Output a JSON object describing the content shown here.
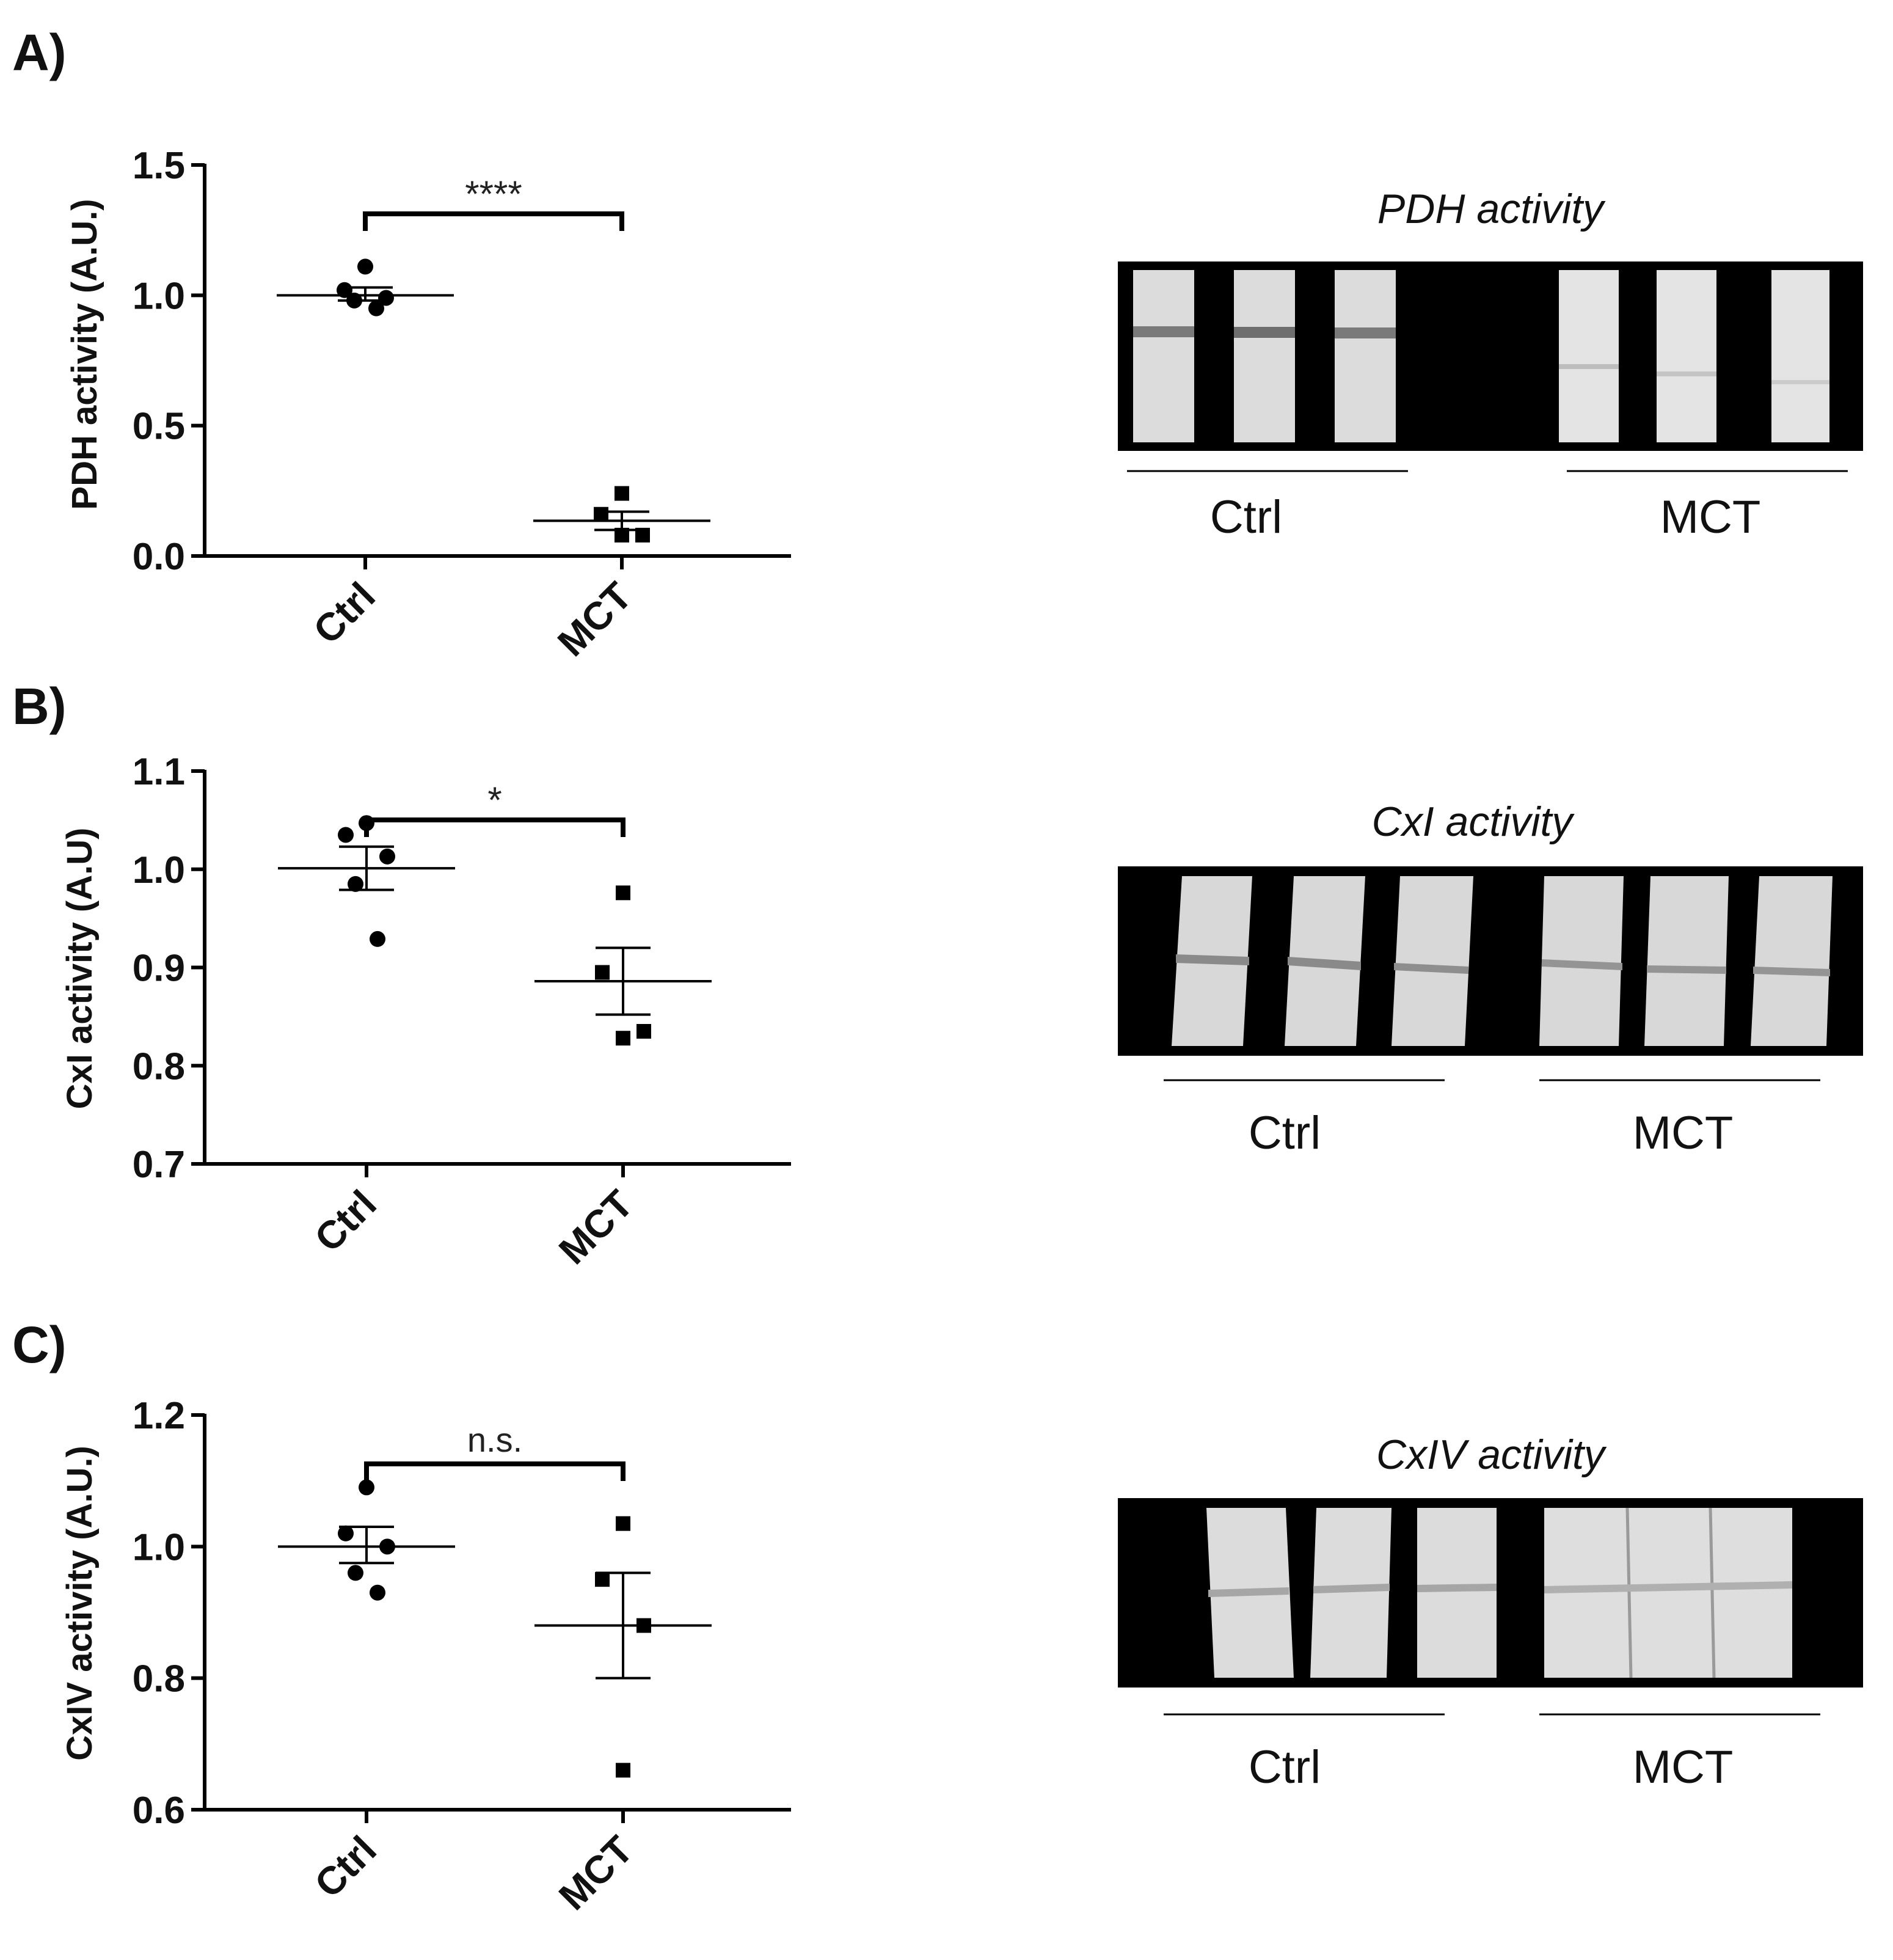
{
  "chart_data": [
    {
      "panel": "A)",
      "type": "scatter",
      "ylabel": "PDH activity (A.U.)",
      "categories": [
        "Ctrl",
        "MCT"
      ],
      "ylim": [
        0.0,
        1.5
      ],
      "yticks": [
        0.0,
        0.5,
        1.0,
        1.5
      ],
      "ytick_labels": [
        "0.0",
        "0.5",
        "1.0",
        "1.5"
      ],
      "series": [
        {
          "category": "Ctrl",
          "marker": "circle",
          "points": [
            1.11,
            1.02,
            0.99,
            0.98,
            0.95
          ],
          "mean": 1.0,
          "sem": [
            0.98,
            1.03
          ]
        },
        {
          "category": "MCT",
          "marker": "square",
          "points": [
            0.24,
            0.16,
            0.08,
            0.08
          ],
          "mean": 0.135,
          "sem": [
            0.1,
            0.17
          ]
        }
      ],
      "significance": "****",
      "blot": {
        "title": "PDH activity",
        "groups": [
          "Ctrl",
          "MCT"
        ]
      }
    },
    {
      "panel": "B)",
      "type": "scatter",
      "ylabel": "CxI activity (A.U)",
      "categories": [
        "Ctrl",
        "MCT"
      ],
      "ylim": [
        0.7,
        1.1
      ],
      "yticks": [
        0.7,
        0.8,
        0.9,
        1.0,
        1.1
      ],
      "ytick_labels": [
        "0.7",
        "0.8",
        "0.9",
        "1.0",
        "1.1"
      ],
      "series": [
        {
          "category": "Ctrl",
          "marker": "circle",
          "points": [
            1.047,
            1.035,
            1.013,
            0.985,
            0.929
          ],
          "mean": 1.001,
          "sem": [
            0.979,
            1.023
          ]
        },
        {
          "category": "MCT",
          "marker": "square",
          "points": [
            0.976,
            0.895,
            0.835,
            0.828
          ],
          "mean": 0.886,
          "sem": [
            0.852,
            0.92
          ]
        }
      ],
      "significance": "*",
      "blot": {
        "title": "CxI activity",
        "groups": [
          "Ctrl",
          "MCT"
        ]
      }
    },
    {
      "panel": "C)",
      "type": "scatter",
      "ylabel": "CxIV activity (A.U.)",
      "categories": [
        "Ctrl",
        "MCT"
      ],
      "ylim": [
        0.6,
        1.2
      ],
      "yticks": [
        0.6,
        0.8,
        1.0,
        1.2
      ],
      "ytick_labels": [
        "0.6",
        "0.8",
        "1.0",
        "1.2"
      ],
      "series": [
        {
          "category": "Ctrl",
          "marker": "circle",
          "points": [
            1.09,
            1.02,
            1.0,
            0.96,
            0.93
          ],
          "mean": 1.0,
          "sem": [
            0.975,
            1.03
          ]
        },
        {
          "category": "MCT",
          "marker": "square",
          "points": [
            1.035,
            0.95,
            0.88,
            0.66
          ],
          "mean": 0.88,
          "sem": [
            0.8,
            0.96
          ]
        }
      ],
      "significance": "n.s.",
      "blot": {
        "title": "CxIV activity",
        "groups": [
          "Ctrl",
          "MCT"
        ]
      }
    }
  ]
}
